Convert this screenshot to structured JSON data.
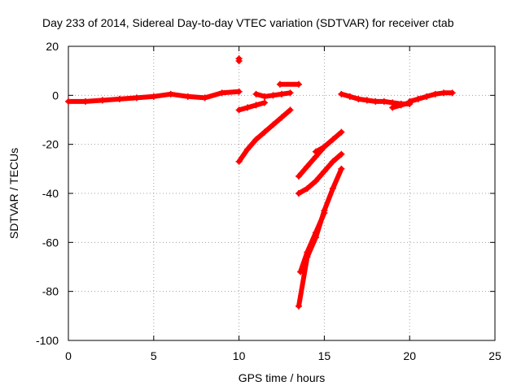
{
  "chart_data": {
    "type": "scatter",
    "title": "Day 233 of 2014, Sidereal Day-to-day VTEC variation (SDTVAR) for receiver ctab",
    "xlabel": "GPS time / hours",
    "ylabel": "SDTVAR / TECUs",
    "xlim": [
      0,
      25
    ],
    "ylim": [
      -100,
      20
    ],
    "xticks": [
      0,
      5,
      10,
      15,
      20,
      25
    ],
    "yticks": [
      -100,
      -80,
      -60,
      -40,
      -20,
      0,
      20
    ],
    "grid": true,
    "legend": "none",
    "color": "#ff0000",
    "tracks": [
      {
        "x": [
          0,
          1,
          2,
          3,
          4,
          5,
          6,
          7,
          8,
          9,
          10
        ],
        "y": [
          -2.5,
          -2.5,
          -2,
          -1.5,
          -1,
          -0.5,
          0.5,
          -0.5,
          -1,
          1,
          1.5
        ]
      },
      {
        "x": [
          10,
          10.5,
          11,
          11.5
        ],
        "y": [
          -6,
          -5,
          -4,
          -3
        ]
      },
      {
        "x": [
          11,
          11.5,
          12,
          12.5,
          13
        ],
        "y": [
          0.5,
          -0.5,
          0,
          0.5,
          1
        ]
      },
      {
        "x": [
          12.4,
          13.5
        ],
        "y": [
          4.5,
          4.5
        ]
      },
      {
        "x": [
          10,
          10.5,
          11,
          11.5,
          12,
          12.5,
          13
        ],
        "y": [
          -27,
          -22,
          -18,
          -15,
          -12,
          -9,
          -6
        ]
      },
      {
        "x": [
          10,
          10
        ],
        "y": [
          14,
          15
        ]
      },
      {
        "x": [
          13.5,
          14,
          14.5,
          15
        ],
        "y": [
          -33,
          -29,
          -25,
          -21
        ]
      },
      {
        "x": [
          14.5,
          15,
          15.5,
          16
        ],
        "y": [
          -23,
          -21,
          -18,
          -15
        ]
      },
      {
        "x": [
          13.5,
          14,
          14.5,
          15,
          15.5,
          16
        ],
        "y": [
          -40,
          -38,
          -35,
          -31,
          -27,
          -24
        ]
      },
      {
        "x": [
          13.5,
          14,
          14.5,
          15,
          15.5,
          16
        ],
        "y": [
          -86,
          -66,
          -58,
          -47,
          -38,
          -30
        ]
      },
      {
        "x": [
          13.6,
          14,
          14.5,
          15
        ],
        "y": [
          -72,
          -64,
          -56,
          -48
        ]
      },
      {
        "x": [
          16,
          16.5,
          17,
          17.5,
          18,
          18.5,
          19,
          19.5,
          20
        ],
        "y": [
          0.5,
          -0.5,
          -1.5,
          -2,
          -2.5,
          -2.5,
          -3,
          -3.5,
          -3.5
        ]
      },
      {
        "x": [
          19,
          19.5,
          20
        ],
        "y": [
          -5,
          -4,
          -3
        ]
      },
      {
        "x": [
          20,
          20.5,
          21,
          21.5,
          22,
          22.5
        ],
        "y": [
          -2.5,
          -1.5,
          -0.5,
          0.5,
          1,
          1
        ]
      }
    ]
  }
}
